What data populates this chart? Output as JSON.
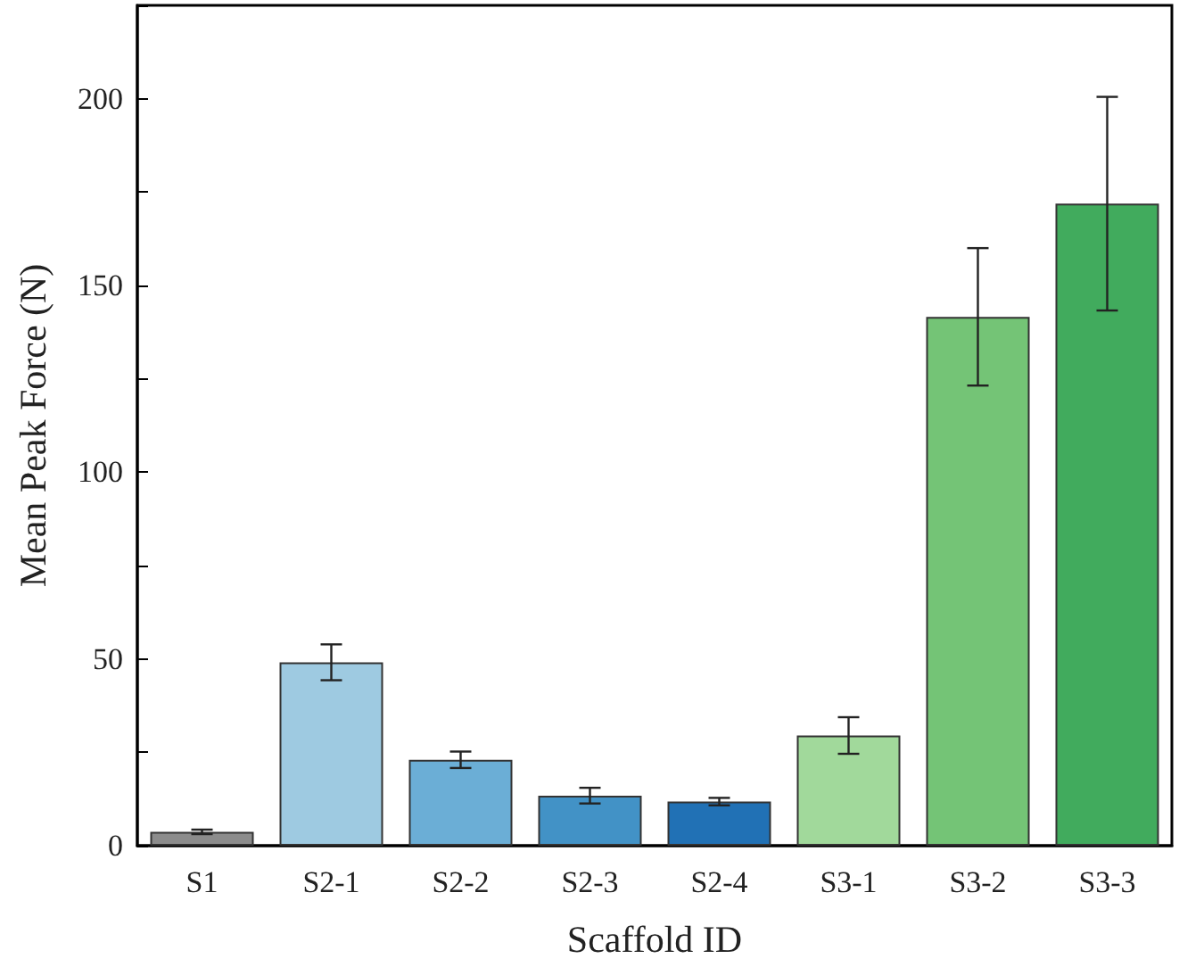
{
  "chart_data": {
    "type": "bar",
    "xlabel": "Scaffold ID",
    "ylabel": "Mean Peak Force (N)",
    "categories": [
      "S1",
      "S2-1",
      "S2-2",
      "S2-3",
      "S2-4",
      "S3-1",
      "S3-2",
      "S3-3"
    ],
    "values": [
      3.7,
      49.1,
      23,
      13.4,
      11.8,
      29.5,
      141.6,
      171.9
    ],
    "errors": [
      0.6,
      4.8,
      2.2,
      2.1,
      1,
      4.9,
      18.4,
      28.6
    ],
    "colors": [
      "#8c8c8c",
      "#9ecae1",
      "#6baed6",
      "#4292c6",
      "#2171b5",
      "#a1d99b",
      "#74c476",
      "#41ab5d"
    ],
    "ylim": [
      0,
      225
    ],
    "yticks": [
      0,
      {
        "value": 25,
        "label": null
      },
      50,
      {
        "value": 75,
        "label": null
      },
      100,
      {
        "value": 125,
        "label": null
      },
      150,
      {
        "value": 175,
        "label": null
      },
      200,
      {
        "value": 225,
        "label": null
      }
    ]
  }
}
